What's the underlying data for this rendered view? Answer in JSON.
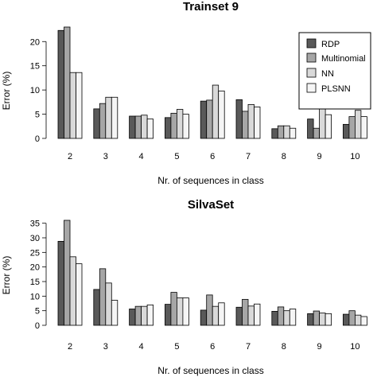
{
  "legend": {
    "entries": [
      "RDP",
      "Multinomial",
      "NN",
      "PLSNN"
    ],
    "placement": "top-right"
  },
  "colors": {
    "RDP": "#595959",
    "Multinomial": "#a6a6a6",
    "NN": "#d9d9d9",
    "PLSNN": "#f5f5f5",
    "stroke": "#000000"
  },
  "chart_data": [
    {
      "type": "bar",
      "title": "Trainset 9",
      "xlabel": "Nr. of sequences in class",
      "ylabel": "Error (%)",
      "ylim": [
        0,
        23
      ],
      "yticks": [
        0,
        5,
        10,
        15,
        20
      ],
      "categories": [
        "2",
        "3",
        "4",
        "5",
        "6",
        "7",
        "8",
        "9",
        "10"
      ],
      "grid": false,
      "series": [
        {
          "name": "RDP",
          "values": [
            22.3,
            6.1,
            4.6,
            4.3,
            7.7,
            8.0,
            2.0,
            4.0,
            2.9
          ]
        },
        {
          "name": "Multinomial",
          "values": [
            23.0,
            7.2,
            4.6,
            5.2,
            7.9,
            5.6,
            2.6,
            2.1,
            4.5
          ]
        },
        {
          "name": "NN",
          "values": [
            13.6,
            8.5,
            4.8,
            6.0,
            11.0,
            7.0,
            2.6,
            8.5,
            5.8
          ]
        },
        {
          "name": "PLSNN",
          "values": [
            13.6,
            8.5,
            4.0,
            5.0,
            9.8,
            6.5,
            2.1,
            4.9,
            4.5
          ]
        }
      ]
    },
    {
      "type": "bar",
      "title": "SilvaSet",
      "xlabel": "Nr. of sequences in class",
      "ylabel": "Error (%)",
      "ylim": [
        0,
        36
      ],
      "yticks": [
        0,
        5,
        10,
        15,
        20,
        25,
        30,
        35
      ],
      "categories": [
        "2",
        "3",
        "4",
        "5",
        "6",
        "7",
        "8",
        "9",
        "10"
      ],
      "grid": false,
      "series": [
        {
          "name": "RDP",
          "values": [
            28.8,
            12.3,
            5.6,
            7.2,
            5.2,
            6.2,
            4.8,
            4.0,
            3.8
          ]
        },
        {
          "name": "Multinomial",
          "values": [
            36.0,
            19.4,
            6.5,
            11.3,
            10.4,
            8.9,
            6.3,
            4.9,
            5.0
          ]
        },
        {
          "name": "NN",
          "values": [
            23.5,
            14.5,
            6.5,
            9.4,
            6.5,
            6.6,
            5.0,
            4.2,
            3.5
          ]
        },
        {
          "name": "PLSNN",
          "values": [
            21.1,
            8.6,
            7.0,
            9.4,
            7.7,
            7.3,
            5.6,
            4.0,
            3.0
          ]
        }
      ]
    }
  ]
}
